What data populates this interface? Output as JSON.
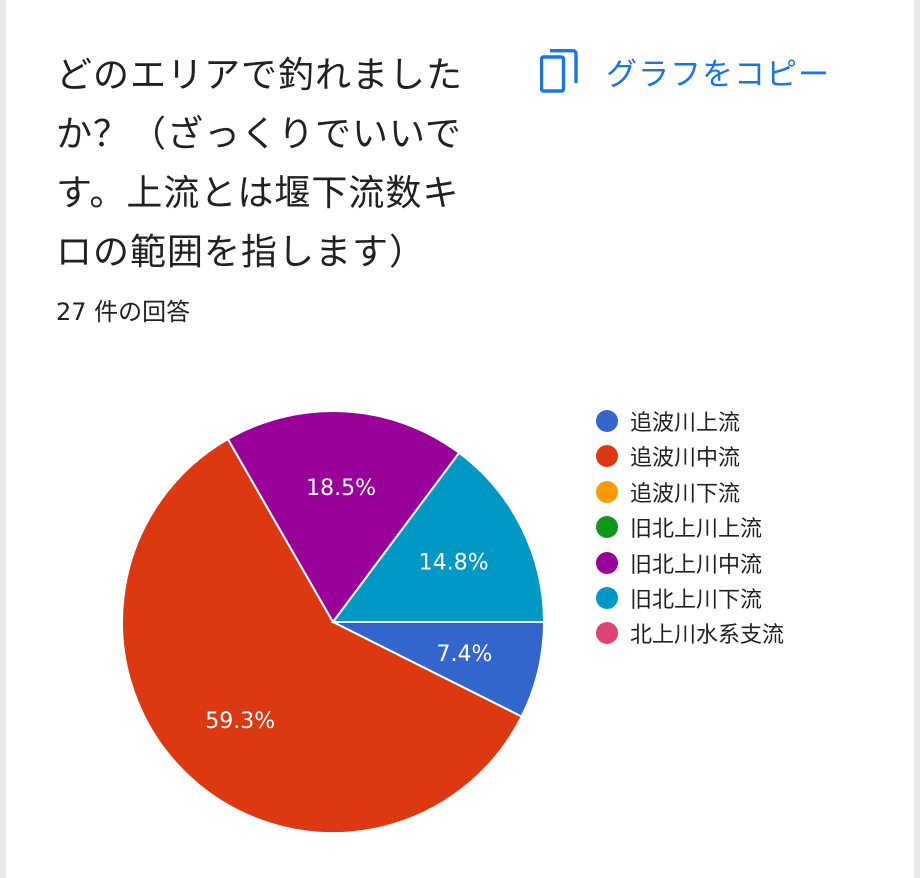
{
  "question": "どのエリアで釣れましたか？（ざっくりでいいです。上流とは堰下流数キロの範囲を指します）",
  "copy_button": {
    "label": "グラフをコピー",
    "icon": "copy-icon",
    "color": "#1a73e8"
  },
  "response_count": "27 件の回答",
  "chart_data": {
    "type": "pie",
    "categories": [
      "追波川上流",
      "追波川中流",
      "追波川下流",
      "旧北上川上流",
      "旧北上川中流",
      "旧北上川下流",
      "北上川水系支流"
    ],
    "values": [
      7.4,
      59.3,
      0,
      0,
      18.5,
      14.8,
      0
    ],
    "labels": [
      "7.4%",
      "59.3%",
      "",
      "",
      "18.5%",
      "14.8%",
      ""
    ],
    "colors": [
      "#3366cc",
      "#dc3912",
      "#ff9900",
      "#109618",
      "#990099",
      "#0099c6",
      "#dd4477"
    ],
    "legend_position": "right"
  }
}
